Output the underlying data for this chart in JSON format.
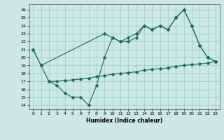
{
  "xlabel": "Humidex (Indice chaleur)",
  "bg_color": "#cce8e4",
  "line_color": "#1a6b5a",
  "grid_color": "#99cccc",
  "xlim": [
    -0.5,
    23.5
  ],
  "ylim": [
    13.5,
    26.7
  ],
  "yticks": [
    14,
    15,
    16,
    17,
    18,
    19,
    20,
    21,
    22,
    23,
    24,
    25,
    26
  ],
  "xticks": [
    0,
    1,
    2,
    3,
    4,
    5,
    6,
    7,
    8,
    9,
    10,
    11,
    12,
    13,
    14,
    15,
    16,
    17,
    18,
    19,
    20,
    21,
    22,
    23
  ],
  "line1_x": [
    0,
    1,
    2,
    3,
    4,
    5,
    6,
    7,
    8,
    9,
    10,
    11,
    12,
    13,
    14,
    15,
    16,
    17,
    18,
    19,
    20,
    21,
    22,
    23
  ],
  "line1_y": [
    21.0,
    19.0,
    17.0,
    16.5,
    15.5,
    15.0,
    15.0,
    14.0,
    16.5,
    20.0,
    22.5,
    22.0,
    22.0,
    22.5,
    24.0,
    23.5,
    24.0,
    23.5,
    25.0,
    26.0,
    24.0,
    21.5,
    20.0,
    19.5
  ],
  "line2_x": [
    2,
    3,
    4,
    5,
    6,
    7,
    8,
    9,
    10,
    11,
    12,
    13,
    14,
    15,
    16,
    17,
    18,
    19,
    20,
    21,
    22,
    23
  ],
  "line2_y": [
    17.0,
    17.0,
    17.1,
    17.2,
    17.3,
    17.4,
    17.6,
    17.7,
    17.9,
    18.0,
    18.1,
    18.2,
    18.4,
    18.5,
    18.6,
    18.7,
    18.9,
    19.0,
    19.1,
    19.2,
    19.3,
    19.5
  ],
  "line3_x": [
    0,
    1,
    9,
    10,
    11,
    12,
    13,
    14,
    15,
    16,
    17,
    18,
    19,
    20,
    21,
    22,
    23
  ],
  "line3_y": [
    21.0,
    19.0,
    23.0,
    22.5,
    22.0,
    22.5,
    23.0,
    24.0,
    23.5,
    24.0,
    23.5,
    25.0,
    26.0,
    24.0,
    21.5,
    20.0,
    19.5
  ],
  "markersize": 2.5,
  "linewidth": 0.8
}
